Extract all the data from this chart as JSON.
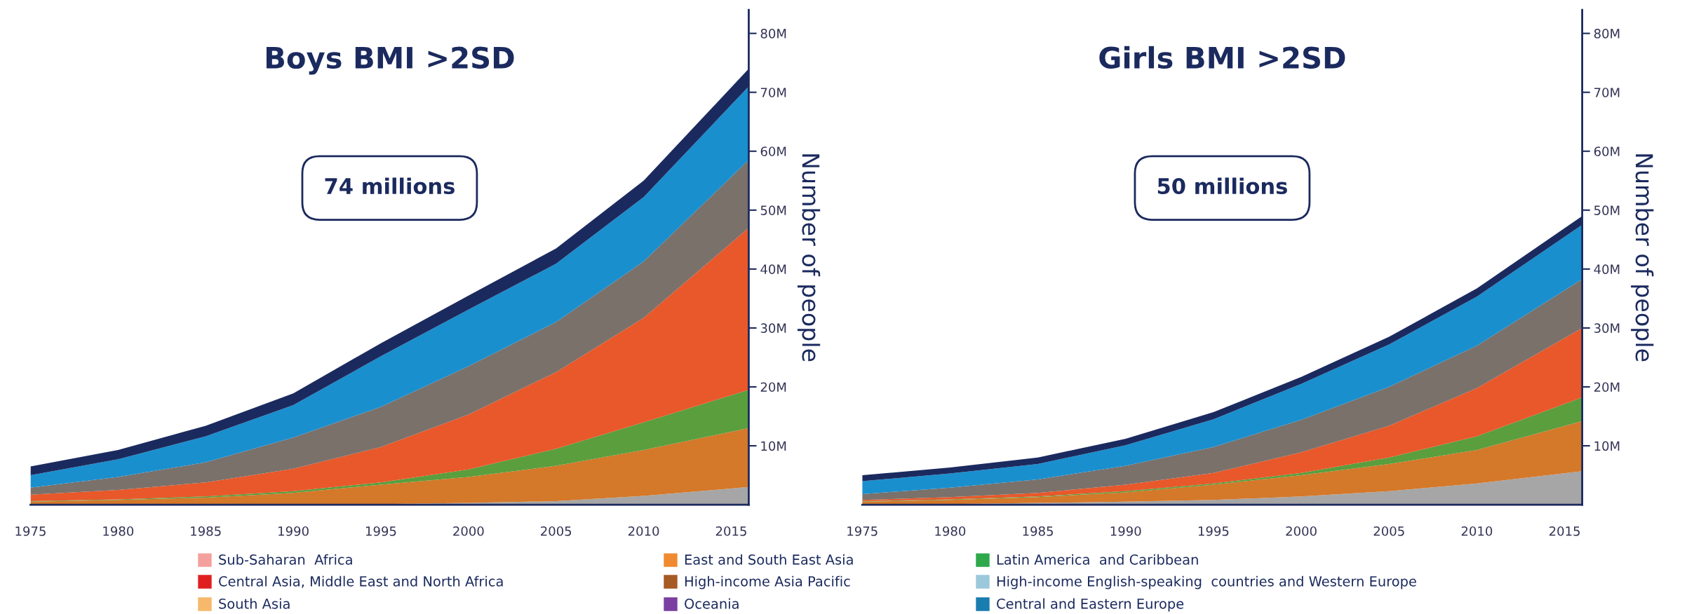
{
  "chart_data": [
    {
      "type": "area",
      "stacked": true,
      "title": "Boys BMI >2SD",
      "ylabel": "Number of people",
      "annotations": [
        "74 millions"
      ],
      "x": [
        1975,
        1980,
        1985,
        1990,
        1995,
        2000,
        2005,
        2010,
        2016
      ],
      "xlim": [
        1975,
        2016
      ],
      "xticks": [
        1975,
        1980,
        1985,
        1990,
        1995,
        2000,
        2005,
        2010,
        2015
      ],
      "ylim": [
        0,
        84
      ],
      "yticks": [
        {
          "value": 10,
          "label": "10M"
        },
        {
          "value": 20,
          "label": "20M"
        },
        {
          "value": 30,
          "label": "30M"
        },
        {
          "value": 40,
          "label": "40M"
        },
        {
          "value": 50,
          "label": "50M"
        },
        {
          "value": 60,
          "label": "60M"
        },
        {
          "value": 70,
          "label": "70M"
        },
        {
          "value": 80,
          "label": "80M"
        }
      ],
      "grid": false,
      "legend": false,
      "series": [
        {
          "color": "#a6a6a6",
          "values": [
            0,
            0,
            0,
            0,
            0.1,
            0.3,
            0.6,
            1.5,
            3
          ]
        },
        {
          "color": "#d4782a",
          "values": [
            0.5,
            0.8,
            1.2,
            2.0,
            3.3,
            4.4,
            6.0,
            7.8,
            10
          ]
        },
        {
          "color": "#5a9e3e",
          "values": [
            0.1,
            0.1,
            0.2,
            0.3,
            0.4,
            1.3,
            2.9,
            4.7,
            6.5
          ]
        },
        {
          "color": "#e8582a",
          "values": [
            1.1,
            1.6,
            2.4,
            3.8,
            6.0,
            9.3,
            13,
            17.7,
            27.5
          ]
        },
        {
          "color": "#7a716b",
          "values": [
            1.2,
            2.2,
            3.4,
            5.3,
            6.8,
            8.2,
            8.5,
            9.6,
            11.5
          ]
        },
        {
          "color": "#1a8fce",
          "values": [
            2.1,
            3.0,
            4.4,
            5.5,
            8.6,
            9.6,
            9.9,
            10.9,
            12.5
          ]
        },
        {
          "color": "#1b2a5e",
          "values": [
            1.5,
            1.6,
            1.8,
            2,
            2.2,
            2.4,
            2.6,
            2.8,
            3
          ]
        }
      ]
    },
    {
      "type": "area",
      "stacked": true,
      "title": "Girls BMI >2SD",
      "ylabel": "Number of people",
      "annotations": [
        "50 millions"
      ],
      "x": [
        1975,
        1980,
        1985,
        1990,
        1995,
        2000,
        2005,
        2010,
        2016
      ],
      "xlim": [
        1975,
        2016
      ],
      "xticks": [
        1975,
        1980,
        1985,
        1990,
        1995,
        2000,
        2005,
        2010,
        2015
      ],
      "ylim": [
        0,
        84
      ],
      "yticks": [
        {
          "value": 10,
          "label": "10M"
        },
        {
          "value": 20,
          "label": "20M"
        },
        {
          "value": 30,
          "label": "30M"
        },
        {
          "value": 40,
          "label": "40M"
        },
        {
          "value": 50,
          "label": "50M"
        },
        {
          "value": 60,
          "label": "60M"
        },
        {
          "value": 70,
          "label": "70M"
        },
        {
          "value": 80,
          "label": "80M"
        }
      ],
      "grid": false,
      "legend": false,
      "series": [
        {
          "color": "#a6a6a6",
          "values": [
            0,
            0.1,
            0.3,
            0.5,
            0.8,
            1.4,
            2.3,
            3.6,
            5.7
          ]
        },
        {
          "color": "#d4782a",
          "values": [
            0.5,
            0.7,
            1.0,
            1.6,
            2.6,
            3.6,
            4.6,
            5.7,
            8.5
          ]
        },
        {
          "color": "#5a9e3e",
          "values": [
            0.1,
            0.1,
            0.1,
            0.2,
            0.2,
            0.4,
            1.1,
            2.3,
            4.0
          ]
        },
        {
          "color": "#e8582a",
          "values": [
            0.2,
            0.4,
            0.6,
            1.1,
            1.8,
            3.5,
            5.4,
            8.2,
            11.8
          ]
        },
        {
          "color": "#7a716b",
          "values": [
            1.0,
            1.6,
            2.3,
            3.2,
            4.4,
            5.5,
            6.6,
            7.2,
            8.3
          ]
        },
        {
          "color": "#1a8fce",
          "values": [
            2.2,
            2.4,
            2.6,
            3.5,
            4.7,
            6.1,
            7.2,
            8.3,
            9.2
          ]
        },
        {
          "color": "#1b2a5e",
          "values": [
            1.0,
            1.0,
            1.1,
            1.1,
            1.2,
            1.2,
            1.3,
            1.4,
            1.5
          ]
        }
      ]
    },
    {
      "type": "other",
      "categories": [
        "Sub-Saharan  Africa",
        "Central Asia, Middle East and North Africa",
        "South Asia",
        "East and South East Asia",
        "High-income Asia Pacific",
        "Oceania",
        "Latin America  and Caribbean",
        "High-income English-speaking  countries and Western Europe",
        "Central and Eastern Europe"
      ],
      "colors": [
        "#f4a09c",
        "#e02020",
        "#f6b96b",
        "#f08a30",
        "#a65a24",
        "#7a3fa0",
        "#2ea84a",
        "#9cc8dc",
        "#1a7db0"
      ]
    }
  ]
}
